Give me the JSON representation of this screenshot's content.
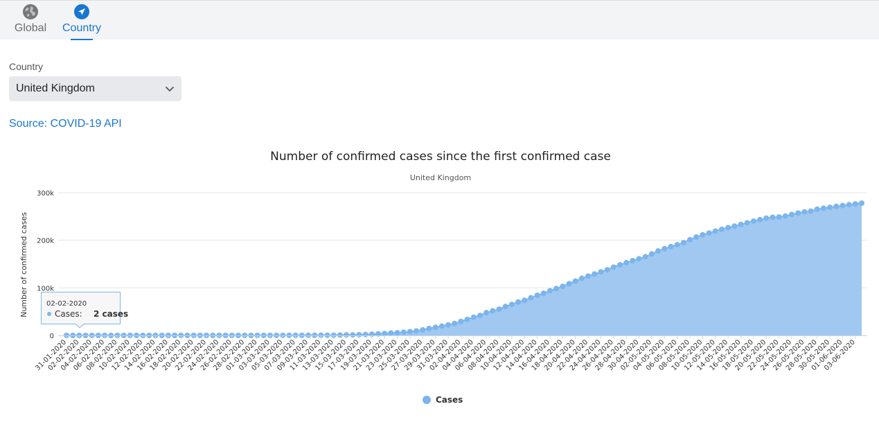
{
  "tabs": [
    {
      "label": "Global",
      "icon": "globe-icon",
      "active": false
    },
    {
      "label": "Country",
      "icon": "navigation-arrow-icon",
      "active": true
    }
  ],
  "country_select": {
    "label": "Country",
    "value": "United Kingdom"
  },
  "source_link": "Source: COVID-19 API",
  "colors": {
    "accent": "#1976d2",
    "series": "#7cb5ec",
    "area": "#9cc5ef"
  },
  "tooltip": {
    "date": "02-02-2020",
    "series": "Cases",
    "value": "2 cases"
  },
  "chart_data": {
    "type": "area",
    "title": "Number of confirmed cases since the first confirmed case",
    "subtitle": "United Kingdom",
    "ylabel": "Number of confirmed cases",
    "xlabel": "",
    "ylim": [
      0,
      300000
    ],
    "yticks": [
      "0",
      "100k",
      "200k",
      "300k"
    ],
    "grid": true,
    "legend_position": "bottom-center",
    "start_date": "31-01-2020",
    "x_label_every": 2,
    "series": [
      {
        "name": "Cases",
        "values": [
          2,
          2,
          2,
          2,
          2,
          2,
          2,
          3,
          3,
          8,
          8,
          9,
          9,
          9,
          9,
          9,
          9,
          9,
          9,
          9,
          9,
          9,
          9,
          9,
          9,
          9,
          9,
          13,
          13,
          19,
          23,
          35,
          40,
          51,
          85,
          115,
          163,
          206,
          273,
          321,
          382,
          456,
          456,
          798,
          1140,
          1140,
          1543,
          1950,
          2626,
          3269,
          3983,
          5018,
          5683,
          6650,
          8077,
          9529,
          11658,
          14543,
          17089,
          19522,
          22141,
          25150,
          29474,
          33718,
          38168,
          41903,
          47806,
          51608,
          55242,
          60733,
          65077,
          70272,
          73758,
          78991,
          84279,
          88621,
          93873,
          98476,
          103093,
          108692,
          114217,
          120067,
          124743,
          129044,
          133495,
          138078,
          143464,
          148377,
          152840,
          157149,
          161145,
          165221,
          171253,
          177454,
          182260,
          186599,
          190584,
          194990,
          201101,
          206715,
          211364,
          215260,
          219183,
          223060,
          226463,
          229705,
          233151,
          236711,
          240161,
          243303,
          246406,
          248293,
          248818,
          250908,
          254195,
          257154,
          259559,
          261184,
          265227,
          267240,
          269127,
          271222,
          272826,
          274762,
          276332,
          277985
        ]
      }
    ]
  }
}
